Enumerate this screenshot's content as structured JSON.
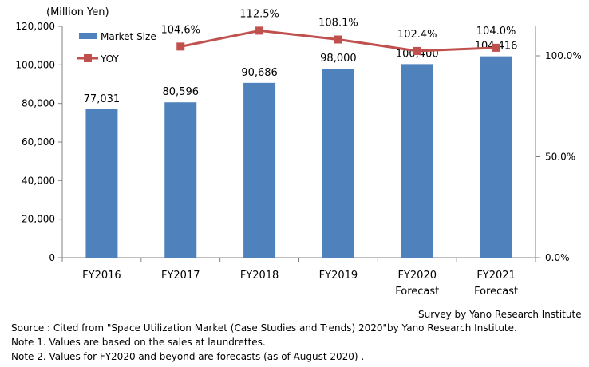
{
  "chart_data": {
    "type": "bar",
    "title": "",
    "unit_label": "(Million Yen)",
    "xlabel": "",
    "ylabel": "",
    "categories": [
      [
        "FY2016"
      ],
      [
        "FY2017"
      ],
      [
        "FY2018"
      ],
      [
        "FY2019"
      ],
      [
        "FY2020",
        "Forecast"
      ],
      [
        "FY2021",
        "Forecast"
      ]
    ],
    "series": [
      {
        "name": "Market Size",
        "type": "bar",
        "axis": "left",
        "color": "#4f81bd",
        "values": [
          77031,
          80596,
          90686,
          98000,
          100400,
          104416
        ],
        "labels": [
          "77,031",
          "80,596",
          "90,686",
          "98,000",
          "100,400",
          "104,416"
        ]
      },
      {
        "name": "YOY",
        "type": "line",
        "axis": "right",
        "color": "#c0504d",
        "values": [
          null,
          104.6,
          112.5,
          108.1,
          102.4,
          104.0
        ],
        "labels": [
          "",
          "104.6%",
          "112.5%",
          "108.1%",
          "102.4%",
          "104.0%"
        ]
      }
    ],
    "left_axis": {
      "ylim": [
        0,
        120000
      ],
      "ticks": [
        0,
        20000,
        40000,
        60000,
        80000,
        100000,
        120000
      ],
      "tick_labels": [
        "0",
        "20,000",
        "40,000",
        "60,000",
        "80,000",
        "100,000",
        "120,000"
      ]
    },
    "right_axis": {
      "ylim": [
        0,
        100
      ],
      "ticks": [
        0,
        50,
        100
      ],
      "tick_labels": [
        "0.0%",
        "50.0%",
        "100.0%"
      ]
    },
    "legend_position": "top-left",
    "grid": false
  },
  "footer": {
    "survey": "Survey by Yano Research Institute",
    "source": "Source : Cited from \"Space Utilization Market (Case Studies and Trends) 2020\"by Yano Research Institute.",
    "note1": "Note 1.  Values are based on the sales at laundrettes.",
    "note2": "Note 2.  Values for FY2020 and beyond are forecasts  (as of August 2020)  ."
  }
}
